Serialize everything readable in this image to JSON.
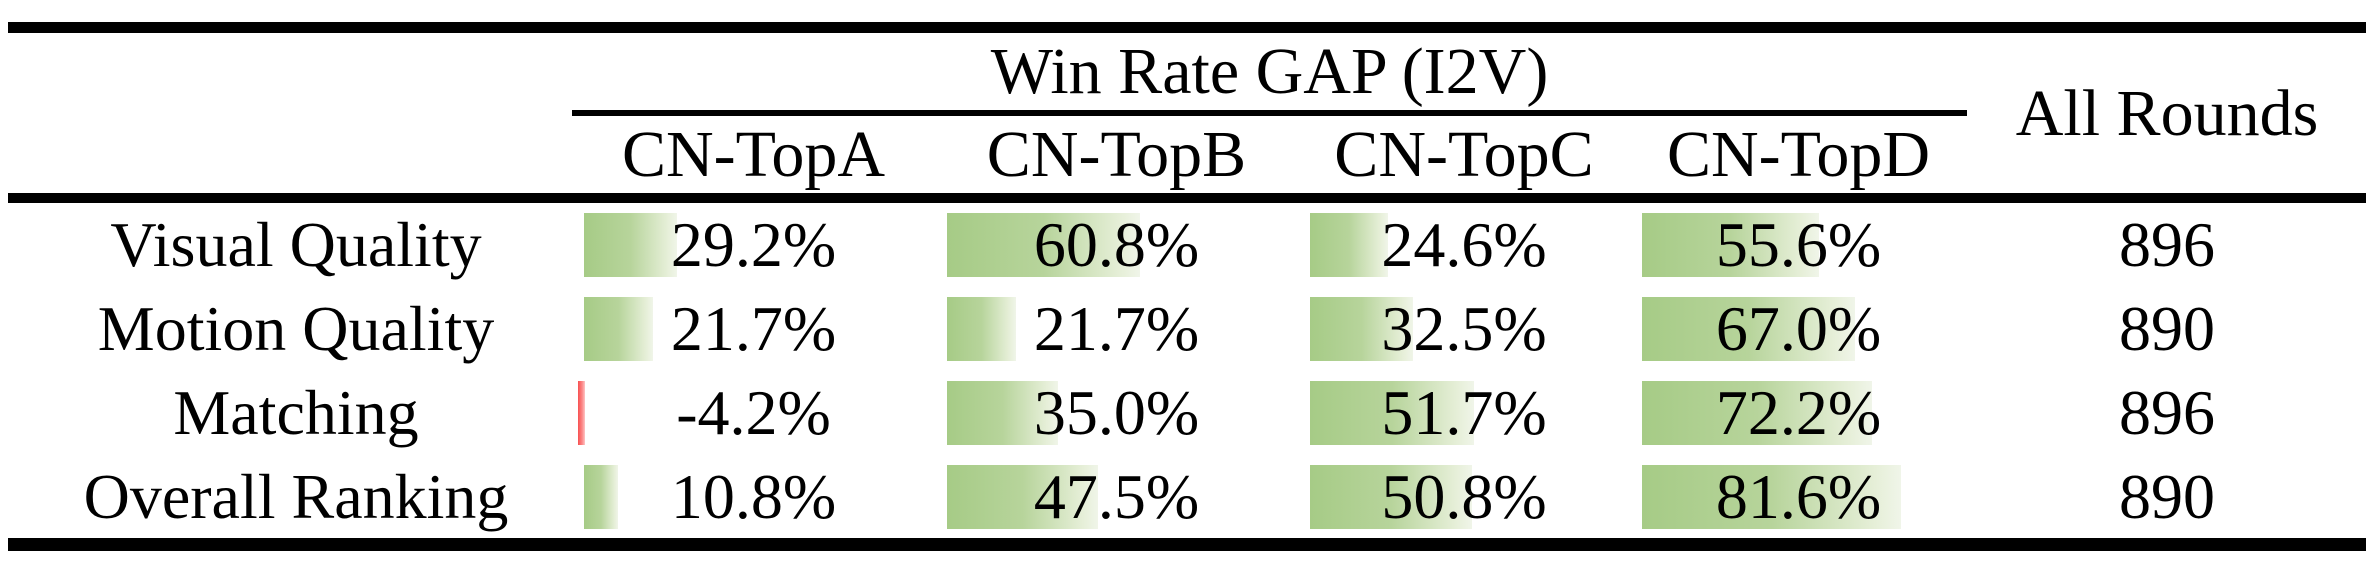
{
  "table": {
    "title": "Win Rate GAP (I2V)",
    "all_rounds_header": "All Rounds",
    "columns": [
      "CN-TopA",
      "CN-TopB",
      "CN-TopC",
      "CN-TopD"
    ],
    "rows": [
      {
        "label": "Visual Quality",
        "cells": [
          {
            "value": 29.2,
            "display": "29.2%"
          },
          {
            "value": 60.8,
            "display": "60.8%"
          },
          {
            "value": 24.6,
            "display": "24.6%"
          },
          {
            "value": 55.6,
            "display": "55.6%"
          }
        ],
        "all_rounds": "896"
      },
      {
        "label": "Motion Quality",
        "cells": [
          {
            "value": 21.7,
            "display": "21.7%"
          },
          {
            "value": 21.7,
            "display": "21.7%"
          },
          {
            "value": 32.5,
            "display": "32.5%"
          },
          {
            "value": 67.0,
            "display": "67.0%"
          }
        ],
        "all_rounds": "890"
      },
      {
        "label": "Matching",
        "cells": [
          {
            "value": -4.2,
            "display": "-4.2%"
          },
          {
            "value": 35.0,
            "display": "35.0%"
          },
          {
            "value": 51.7,
            "display": "51.7%"
          },
          {
            "value": 72.2,
            "display": "72.2%"
          }
        ],
        "all_rounds": "896"
      },
      {
        "label": "Overall Ranking",
        "cells": [
          {
            "value": 10.8,
            "display": "10.8%"
          },
          {
            "value": 47.5,
            "display": "47.5%"
          },
          {
            "value": 50.8,
            "display": "50.8%"
          },
          {
            "value": 81.6,
            "display": "81.6%"
          }
        ],
        "all_rounds": "890"
      }
    ],
    "colors": {
      "bar_positive_start": "#a6cb86",
      "bar_positive_end": "#f0f5e9",
      "bar_negative_start": "#f84f4f",
      "bar_negative_end": "#ffc4c4",
      "text": "#000000",
      "rule": "#000000",
      "background": "#ffffff"
    }
  }
}
